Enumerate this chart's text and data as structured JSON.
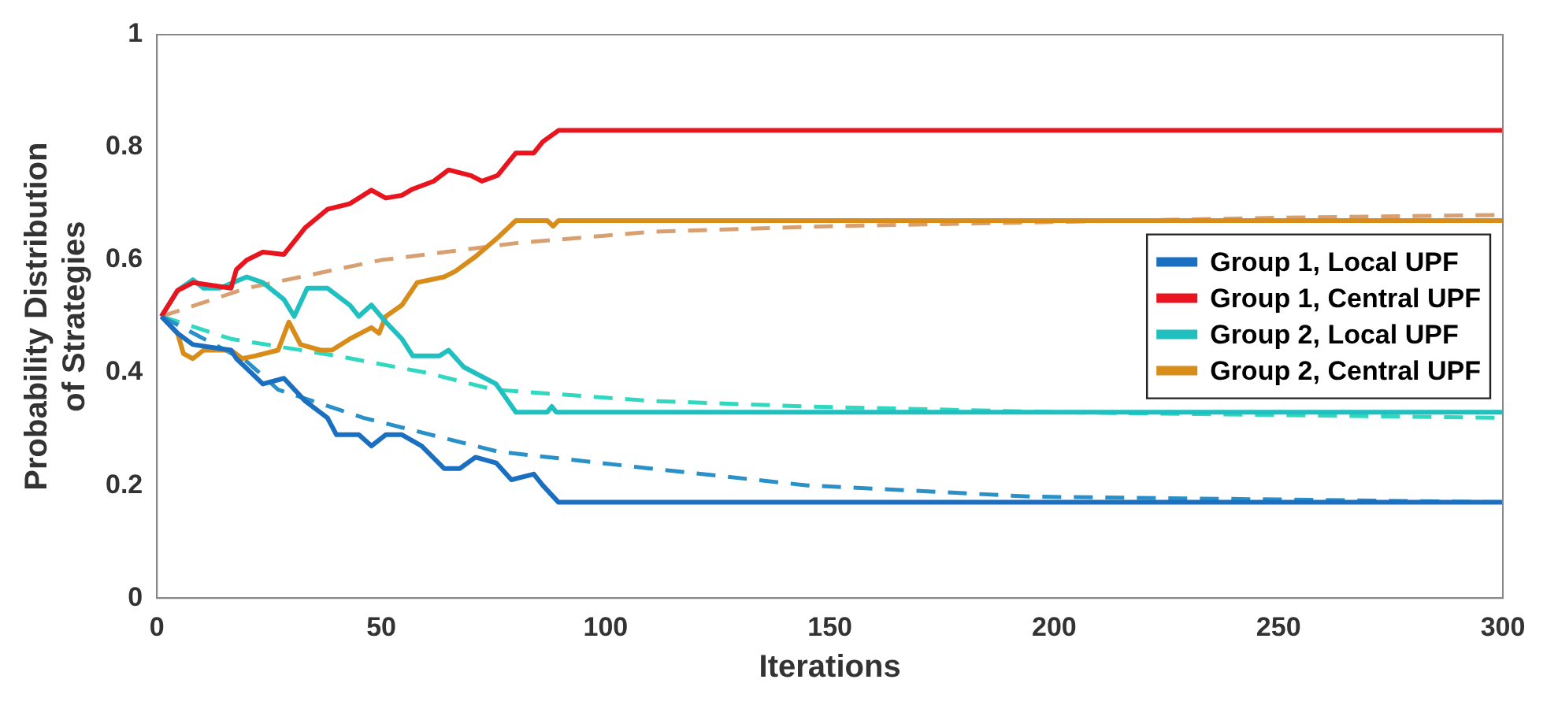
{
  "chart_data": {
    "type": "line",
    "xlabel": "Iterations",
    "ylabel": "Probability Distribution of Strategies",
    "xlim": [
      0,
      300
    ],
    "ylim": [
      0,
      1
    ],
    "xticks": [
      0,
      50,
      100,
      150,
      200,
      250,
      300
    ],
    "yticks": [
      0,
      0.2,
      0.4,
      0.6,
      0.8,
      1
    ],
    "grid": false,
    "legend": "right",
    "marker": "none",
    "series": [
      {
        "name": "Group 1, Local UPF",
        "color": "#1a6fc0",
        "line_style": "solid",
        "x": [
          1,
          4.6,
          8,
          16.5,
          17.7,
          21,
          23.6,
          28.3,
          33,
          38,
          40,
          45,
          47.8,
          51,
          54.6,
          59,
          64,
          67.5,
          71,
          75.6,
          79,
          84,
          86,
          89.5,
          300
        ],
        "values": [
          0.5,
          0.47,
          0.45,
          0.44,
          0.425,
          0.4,
          0.38,
          0.39,
          0.35,
          0.32,
          0.29,
          0.29,
          0.27,
          0.29,
          0.29,
          0.27,
          0.23,
          0.23,
          0.25,
          0.24,
          0.21,
          0.22,
          0.2,
          0.17,
          0.17
        ]
      },
      {
        "name": "Group 1, Central UPF",
        "color": "#e8141e",
        "line_style": "solid",
        "x": [
          1,
          4.6,
          8.1,
          16.5,
          17.7,
          20,
          23.6,
          28.3,
          33,
          38,
          43,
          47.8,
          51,
          54.6,
          57,
          61.7,
          65,
          70,
          72.4,
          75.9,
          80,
          84,
          86,
          89.5,
          300
        ],
        "values": [
          0.5,
          0.546,
          0.56,
          0.55,
          0.583,
          0.6,
          0.614,
          0.61,
          0.657,
          0.69,
          0.7,
          0.724,
          0.71,
          0.715,
          0.726,
          0.74,
          0.76,
          0.75,
          0.74,
          0.75,
          0.79,
          0.79,
          0.81,
          0.83,
          0.83
        ]
      },
      {
        "name": "Group 2, Local UPF",
        "color": "#20c0c0",
        "line_style": "solid",
        "x": [
          1,
          4.6,
          8,
          10.4,
          14,
          20,
          23.6,
          28.3,
          30.6,
          33.5,
          38,
          43,
          45,
          47.8,
          51,
          54.6,
          57,
          63,
          65,
          68.4,
          75.6,
          80,
          87,
          88,
          89,
          300
        ],
        "values": [
          0.5,
          0.546,
          0.565,
          0.55,
          0.55,
          0.57,
          0.56,
          0.53,
          0.5,
          0.55,
          0.55,
          0.52,
          0.5,
          0.52,
          0.49,
          0.46,
          0.43,
          0.43,
          0.44,
          0.41,
          0.38,
          0.33,
          0.33,
          0.34,
          0.33,
          0.33
        ]
      },
      {
        "name": "Group 2, Central UPF",
        "color": "#d88c1a",
        "line_style": "solid",
        "x": [
          1,
          4.6,
          5.9,
          8,
          10.4,
          16.5,
          19,
          22,
          27,
          29.4,
          32,
          36.5,
          39,
          43,
          47.8,
          49.5,
          51,
          54.6,
          58,
          64,
          66.5,
          71,
          76,
          80,
          87,
          88.3,
          89.5,
          300
        ],
        "values": [
          0.5,
          0.47,
          0.434,
          0.425,
          0.44,
          0.44,
          0.425,
          0.43,
          0.44,
          0.49,
          0.45,
          0.44,
          0.44,
          0.46,
          0.48,
          0.47,
          0.5,
          0.52,
          0.56,
          0.57,
          0.58,
          0.606,
          0.64,
          0.67,
          0.67,
          0.66,
          0.67,
          0.67
        ]
      },
      {
        "color": "#2a90c8",
        "line_style": "dashed",
        "x": [
          1,
          20,
          27,
          46,
          76,
          110,
          145,
          195,
          250,
          300
        ],
        "values": [
          0.5,
          0.42,
          0.37,
          0.32,
          0.26,
          0.23,
          0.2,
          0.18,
          0.175,
          0.17
        ]
      },
      {
        "color": "#30d8c0",
        "line_style": "dashed",
        "x": [
          1,
          16.5,
          40,
          60,
          75,
          110,
          145,
          200,
          250,
          300
        ],
        "values": [
          0.5,
          0.46,
          0.43,
          0.4,
          0.37,
          0.35,
          0.34,
          0.33,
          0.325,
          0.32
        ]
      },
      {
        "color": "#d8a070",
        "line_style": "dashed",
        "x": [
          1,
          20,
          50,
          80,
          110,
          150,
          250,
          300
        ],
        "values": [
          0.5,
          0.55,
          0.6,
          0.63,
          0.65,
          0.66,
          0.675,
          0.68
        ]
      }
    ]
  }
}
